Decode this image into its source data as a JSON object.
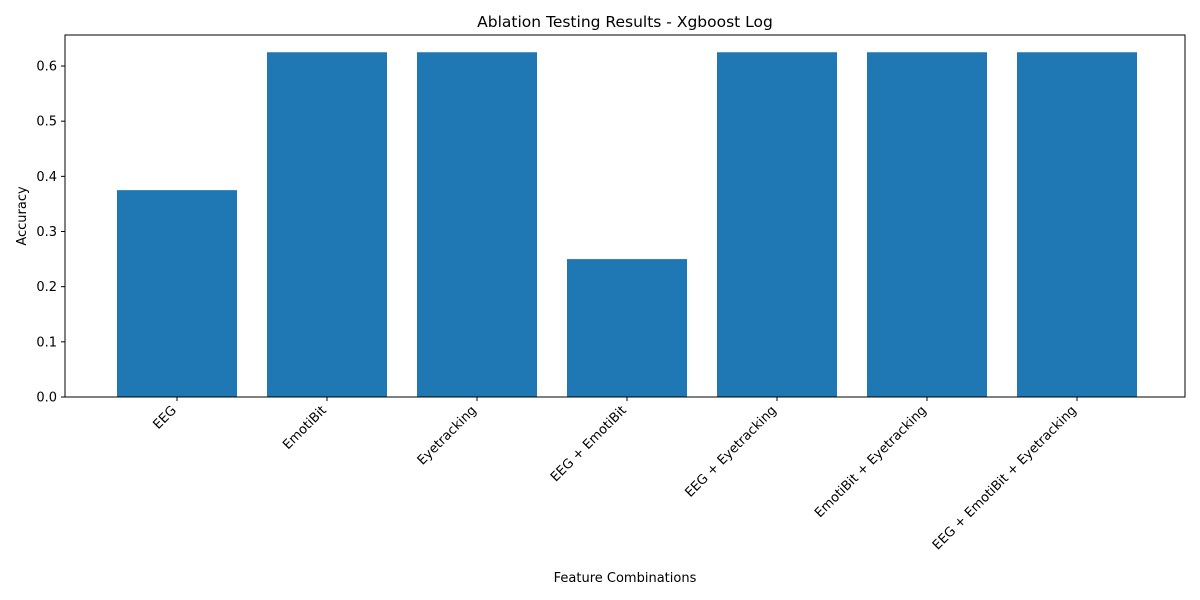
{
  "chart_data": {
    "type": "bar",
    "title": "Ablation Testing Results - Xgboost Log",
    "xlabel": "Feature Combinations",
    "ylabel": "Accuracy",
    "categories": [
      "EEG",
      "EmotiBit",
      "Eyetracking",
      "EEG + EmotiBit",
      "EEG + Eyetracking",
      "EmotiBit + Eyetracking",
      "EEG + EmotiBit + Eyetracking"
    ],
    "values": [
      0.375,
      0.625,
      0.625,
      0.25,
      0.625,
      0.625,
      0.625
    ],
    "yticks": [
      "0.0",
      "0.1",
      "0.2",
      "0.3",
      "0.4",
      "0.5",
      "0.6"
    ],
    "ylim": [
      0,
      0.65625
    ],
    "grid": false,
    "bar_color": "#1f77b4"
  }
}
